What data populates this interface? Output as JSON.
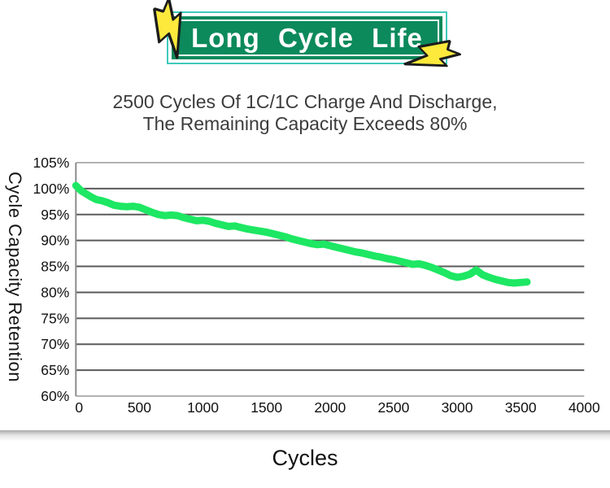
{
  "banner": {
    "title": "Long Cycle Life",
    "sign_color": "#0c8a5c",
    "outline_color": "#3fc9ba",
    "bolt_color": "#fce93c",
    "bolt_outline_color": "#1c1c1c"
  },
  "subtitle": {
    "line1": "2500 Cycles Of 1C/1C Charge And Discharge,",
    "line2": "The Remaining Capacity Exceeds 80%"
  },
  "chart_data": {
    "type": "line",
    "title": "",
    "xlabel": "Cycles",
    "ylabel": "Cycle Capacity Retention",
    "xlim": [
      0,
      4000
    ],
    "ylim": [
      60,
      105
    ],
    "x_ticks": [
      0,
      500,
      1000,
      1500,
      2000,
      2500,
      3000,
      3500,
      4000
    ],
    "y_ticks": [
      105,
      100,
      95,
      90,
      85,
      80,
      75,
      70,
      65,
      60
    ],
    "y_tick_suffix": "%",
    "grid": true,
    "legend": false,
    "line_color": "#1de763",
    "grid_color": "#5a5a5a",
    "border_color": "#b2b2b2",
    "axis_color": "#8c8c8c",
    "series": [
      {
        "name": "Cycle capacity retention",
        "x": [
          0,
          40,
          80,
          120,
          160,
          200,
          250,
          300,
          350,
          400,
          450,
          500,
          550,
          600,
          650,
          700,
          750,
          800,
          850,
          900,
          950,
          1000,
          1050,
          1100,
          1150,
          1200,
          1250,
          1300,
          1350,
          1400,
          1450,
          1500,
          1550,
          1600,
          1650,
          1700,
          1750,
          1800,
          1850,
          1900,
          1950,
          2000,
          2050,
          2100,
          2150,
          2200,
          2250,
          2300,
          2350,
          2400,
          2450,
          2500,
          2550,
          2600,
          2650,
          2700,
          2750,
          2800,
          2850,
          2900,
          2950,
          3000,
          3050,
          3100,
          3150,
          3200,
          3250,
          3300,
          3350,
          3400,
          3450,
          3500,
          3550
        ],
        "y": [
          100.6,
          99.6,
          99.0,
          98.4,
          97.9,
          97.7,
          97.3,
          96.8,
          96.6,
          96.5,
          96.6,
          96.4,
          95.9,
          95.4,
          95.0,
          94.8,
          94.9,
          94.8,
          94.4,
          94.1,
          93.8,
          93.9,
          93.7,
          93.3,
          93.0,
          92.7,
          92.8,
          92.5,
          92.2,
          92.0,
          91.8,
          91.6,
          91.3,
          91.0,
          90.7,
          90.3,
          90.0,
          89.7,
          89.4,
          89.2,
          89.3,
          89.0,
          88.7,
          88.4,
          88.1,
          87.8,
          87.6,
          87.3,
          87.0,
          86.8,
          86.5,
          86.3,
          86.0,
          85.7,
          85.4,
          85.5,
          85.2,
          84.8,
          84.3,
          83.8,
          83.2,
          82.9,
          83.1,
          83.5,
          84.3,
          83.4,
          82.9,
          82.5,
          82.2,
          81.9,
          81.8,
          81.9,
          82.0
        ]
      }
    ]
  }
}
